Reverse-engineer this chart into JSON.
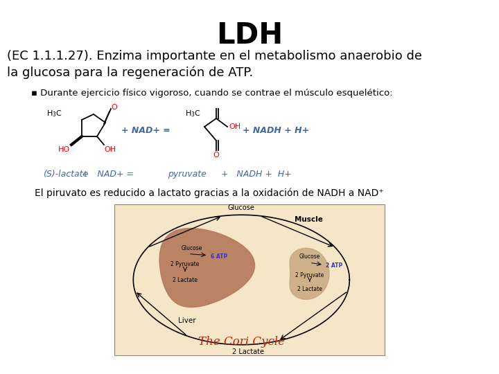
{
  "title": "LDH",
  "title_fontsize": 30,
  "title_fontweight": "bold",
  "body_text_1": "(EC 1.1.1.27). Enzima importante en el metabolismo anaerobio de\nla glucosa para la regeneración de ATP.",
  "body_text_1_fontsize": 13,
  "bullet_text": "▪ Durante ejercicio físico vigoroso, cuando se contrae el músculo esquelético:",
  "bullet_fontsize": 9.5,
  "equation_text_left": "(S)-lactate    +   NAD+ =",
  "equation_text_right": "pyruvate        +   NADH +  H+",
  "equation_fontsize": 9.5,
  "piruvato_text": "El piruvato es reducido a lactato gracias a la oxidación de NADH a NAD⁺",
  "piruvato_fontsize": 10,
  "background_color": "#ffffff",
  "text_color": "#000000",
  "blue_color": "#4169a0",
  "red_color": "#cc0000",
  "cori_bg_color": "#f5e6c8",
  "liver_color": "#b5785a",
  "muscle_color": "#c8a880"
}
